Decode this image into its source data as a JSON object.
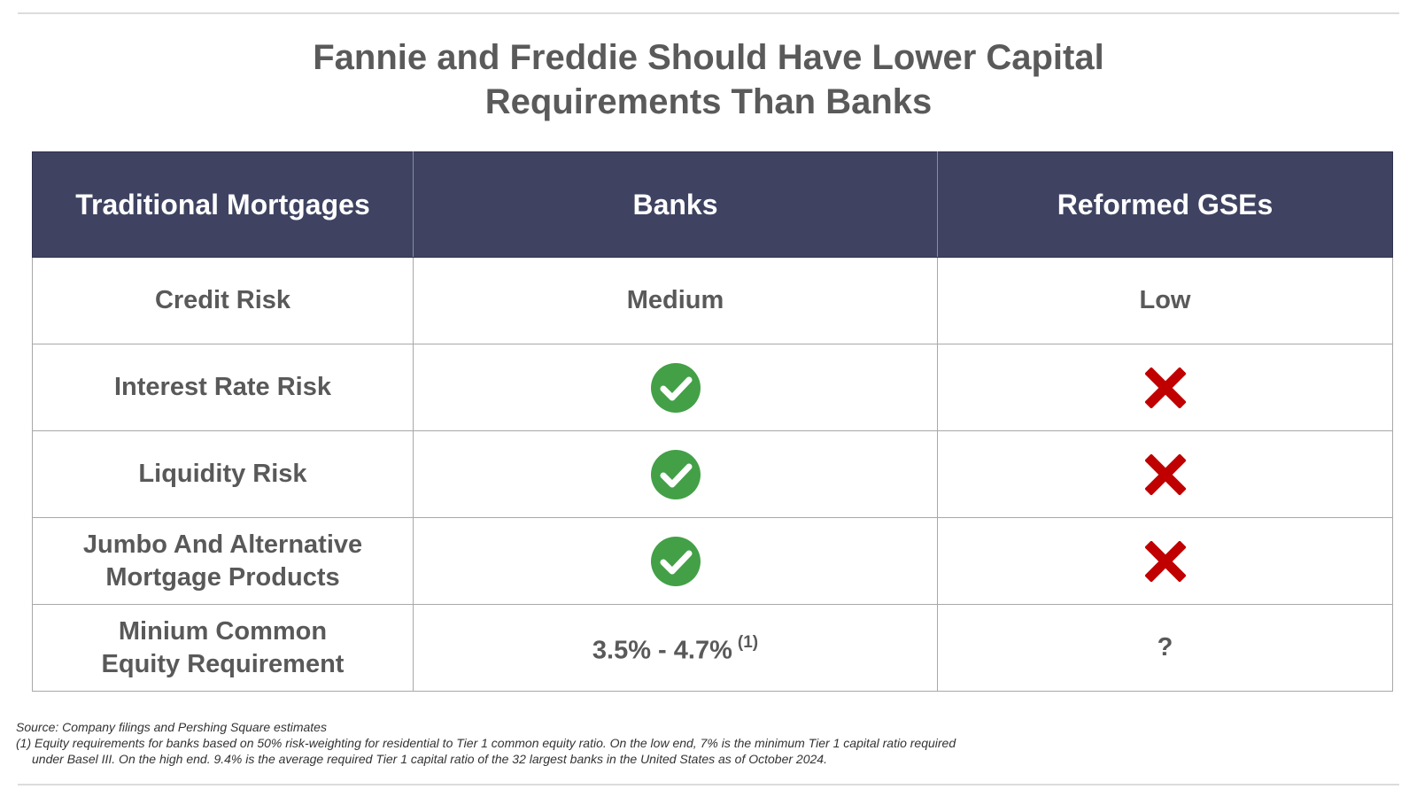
{
  "title": {
    "line1": "Fannie and Freddie Should Have Lower Capital",
    "line2": "Requirements Than Banks"
  },
  "table": {
    "headers": [
      "Traditional Mortgages",
      "Banks",
      "Reformed GSEs"
    ],
    "rows": [
      {
        "label_lines": [
          "Credit Risk"
        ],
        "banks": {
          "type": "text",
          "text": "Medium"
        },
        "gses": {
          "type": "text",
          "text": "Low"
        }
      },
      {
        "label_lines": [
          "Interest Rate Risk"
        ],
        "banks": {
          "type": "icon",
          "icon": "check-circle-icon"
        },
        "gses": {
          "type": "icon",
          "icon": "red-x-icon"
        }
      },
      {
        "label_lines": [
          "Liquidity Risk"
        ],
        "banks": {
          "type": "icon",
          "icon": "check-circle-icon"
        },
        "gses": {
          "type": "icon",
          "icon": "red-x-icon"
        }
      },
      {
        "label_lines": [
          "Jumbo And Alternative",
          "Mortgage Products"
        ],
        "banks": {
          "type": "icon",
          "icon": "check-circle-icon"
        },
        "gses": {
          "type": "icon",
          "icon": "red-x-icon"
        }
      },
      {
        "label_lines": [
          "Minium Common",
          "Equity Requirement"
        ],
        "banks": {
          "type": "text",
          "text": "3.5% - 4.7%",
          "sup": "(1)"
        },
        "gses": {
          "type": "text",
          "text": "?"
        }
      }
    ]
  },
  "colors": {
    "header_bg": "#3f4361",
    "check_green": "#43a047",
    "x_red": "#c00000"
  },
  "footnotes": {
    "source": "Source: Company filings and Pershing Square estimates",
    "note1_line1": "(1) Equity requirements for banks based on 50% risk-weighting for residential to Tier 1 common equity ratio. On the low end, 7% is the minimum Tier 1 capital ratio required",
    "note1_line2": "under Basel III. On the high end. 9.4% is the average required Tier 1 capital ratio of the 32 largest banks in the United States as of October 2024."
  }
}
